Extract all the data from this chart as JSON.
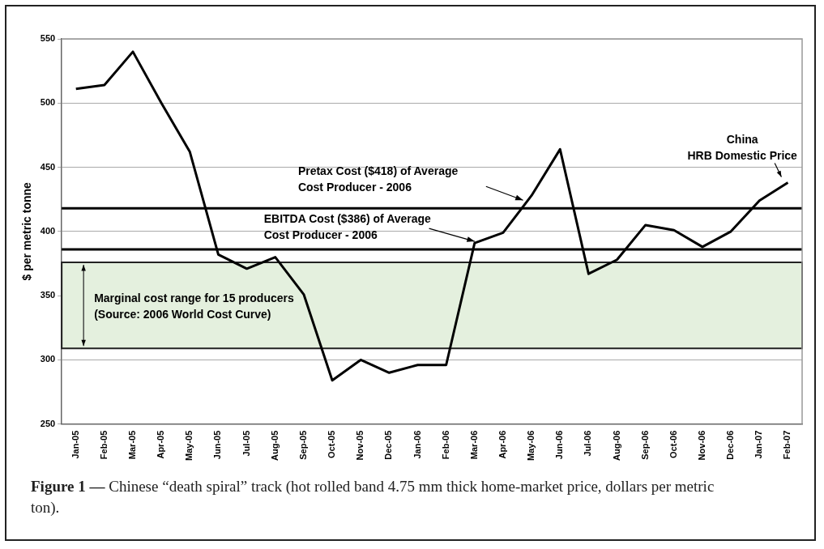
{
  "chart_data": {
    "type": "line",
    "ylabel": "$ per metric tonne",
    "categories": [
      "Jan-05",
      "Feb-05",
      "Mar-05",
      "Apr-05",
      "May-05",
      "Jun-05",
      "Jul-05",
      "Aug-05",
      "Sep-05",
      "Oct-05",
      "Nov-05",
      "Dec-05",
      "Jan-06",
      "Feb-06",
      "Mar-06",
      "Apr-06",
      "May-06",
      "Jun-06",
      "Jul-06",
      "Aug-06",
      "Sep-06",
      "Oct-06",
      "Nov-06",
      "Dec-06",
      "Jan-07",
      "Feb-07"
    ],
    "series": [
      {
        "name": "China\nHRB Domestic Price",
        "color": "#000000",
        "values": [
          511,
          514,
          540,
          500,
          462,
          382,
          371,
          380,
          351,
          284,
          300,
          290,
          296,
          296,
          391,
          399,
          428,
          464,
          367,
          378,
          405,
          401,
          388,
          400,
          424,
          438
        ]
      }
    ],
    "ylim": [
      250,
      550
    ],
    "yticks": [
      250,
      300,
      350,
      400,
      450,
      500,
      550
    ],
    "ref_lines": [
      {
        "axis": "y",
        "value": 418,
        "label": "Pretax Cost ($418) of Average\nCost Producer - 2006",
        "color": "#000000"
      },
      {
        "axis": "y",
        "value": 386,
        "label": "EBITDA Cost ($386) of Average\nCost Producer - 2006",
        "color": "#000000"
      }
    ],
    "bands": [
      {
        "axis": "y",
        "from": 309,
        "to": 376,
        "label": "Marginal cost range for 15 producers\n(Source: 2006 World Cost Curve)",
        "color": "#e4f0de"
      }
    ],
    "annotations": [
      "Figure 1 —",
      "Chinese “death spiral” track (hot rolled band 4.75 mm thick home-market price, dollars per metric ton)."
    ],
    "grid": "y",
    "legend": false,
    "marker": "none",
    "line_style": "solid"
  }
}
